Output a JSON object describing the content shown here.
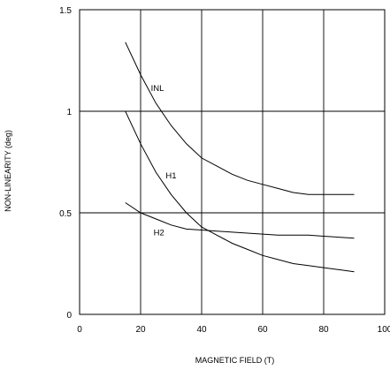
{
  "chart_data": {
    "type": "line",
    "xlabel": "MAGNETIC FIELD (T)",
    "ylabel": "NON-LINEARITY (deg)",
    "xlim": [
      0,
      100
    ],
    "ylim": [
      0,
      1.5
    ],
    "x_ticks": [
      "0",
      "20",
      "40",
      "60",
      "80",
      "100"
    ],
    "y_ticks": [
      "0",
      "0.5",
      "1",
      "1.5"
    ],
    "grid": true,
    "series": [
      {
        "name": "INL",
        "x": [
          15,
          20,
          25,
          30,
          35,
          40,
          45,
          50,
          55,
          60,
          65,
          70,
          75,
          80,
          85,
          90
        ],
        "y": [
          1.34,
          1.18,
          1.04,
          0.93,
          0.84,
          0.77,
          0.73,
          0.69,
          0.66,
          0.64,
          0.62,
          0.6,
          0.59,
          0.59,
          0.59,
          0.59
        ]
      },
      {
        "name": "H1",
        "x": [
          15,
          20,
          25,
          30,
          35,
          40,
          45,
          50,
          55,
          60,
          65,
          70,
          75,
          80,
          85,
          90
        ],
        "y": [
          1.0,
          0.84,
          0.7,
          0.59,
          0.5,
          0.43,
          0.39,
          0.35,
          0.32,
          0.29,
          0.27,
          0.25,
          0.24,
          0.23,
          0.22,
          0.21
        ]
      },
      {
        "name": "H2",
        "x": [
          15,
          20,
          25,
          30,
          35,
          40,
          45,
          50,
          55,
          60,
          65,
          70,
          75,
          80,
          85,
          90
        ],
        "y": [
          0.55,
          0.5,
          0.47,
          0.44,
          0.42,
          0.415,
          0.41,
          0.405,
          0.4,
          0.395,
          0.39,
          0.39,
          0.39,
          0.385,
          0.38,
          0.375
        ]
      }
    ]
  }
}
